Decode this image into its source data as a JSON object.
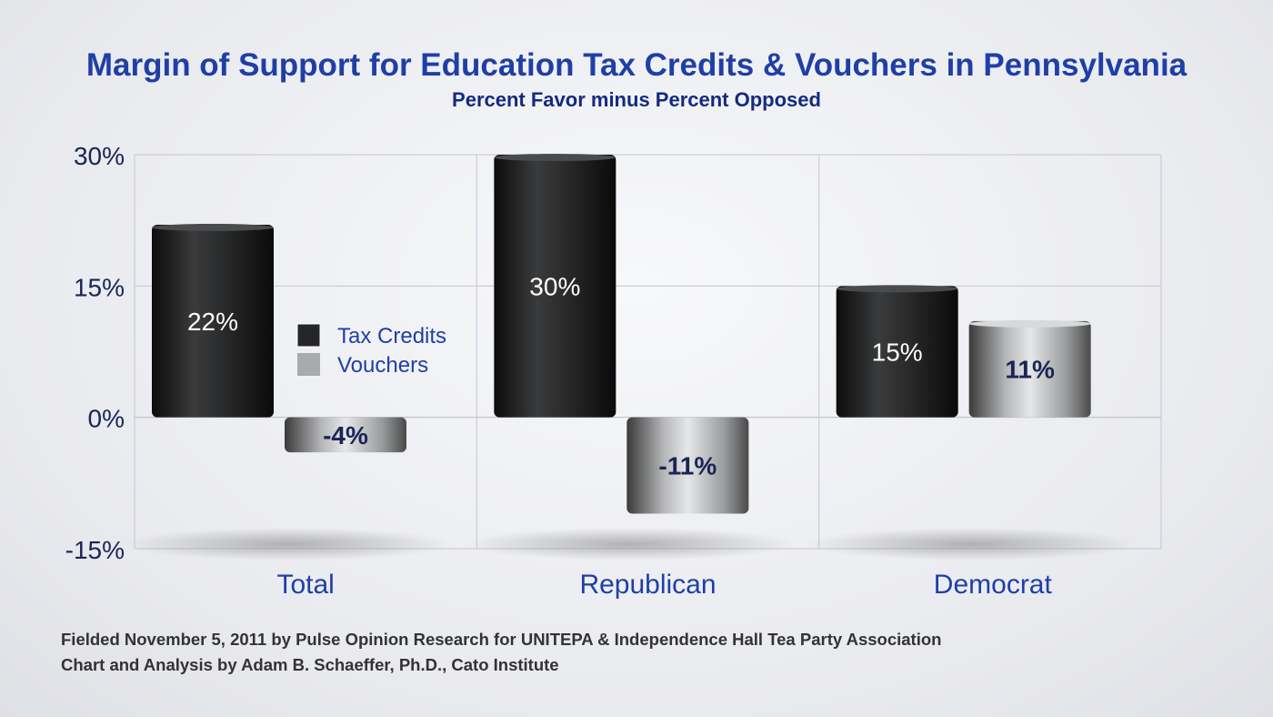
{
  "chart_data": {
    "type": "bar",
    "title": "Margin of Support for Education Tax Credits & Vouchers in Pennsylvania",
    "subtitle": "Percent Favor minus Percent Opposed",
    "categories": [
      "Total",
      "Republican",
      "Democrat"
    ],
    "series": [
      {
        "name": "Tax Credits",
        "values": [
          22,
          30,
          15
        ],
        "labels": [
          "22%",
          "30%",
          "15%"
        ],
        "color": "#2a2b2c"
      },
      {
        "name": "Vouchers",
        "values": [
          -4,
          -11,
          11
        ],
        "labels": [
          "-4%",
          "-11%",
          "11%"
        ],
        "color": "#a9aaac"
      }
    ],
    "ylim": [
      -15,
      30
    ],
    "yticks": [
      30,
      15,
      0,
      -15
    ],
    "ytick_labels": [
      "30%",
      "15%",
      "0%",
      "-15%"
    ],
    "grid": true,
    "legend": "center-left",
    "colors": {
      "title": "#1f3fa6",
      "category_labels": "#1f3fa6",
      "vouchers_label": "#1a2455"
    }
  },
  "footer": {
    "line1": "Fielded November 5, 2011 by Pulse Opinion Research for UNITEPA & Independence Hall Tea Party Association",
    "line2": "Chart and Analysis by Adam B. Schaeffer, Ph.D., Cato Institute"
  }
}
